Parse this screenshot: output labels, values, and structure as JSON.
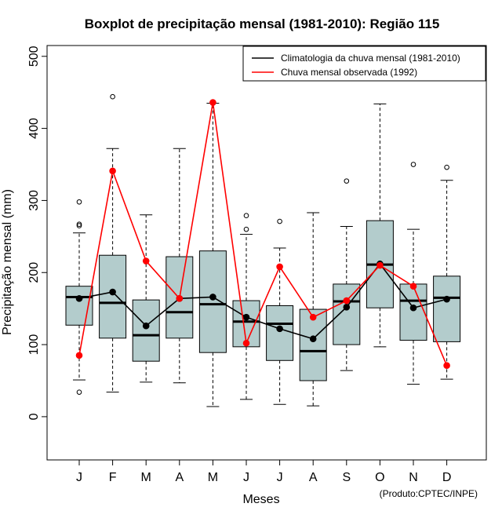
{
  "chart_data": {
    "type": "boxplot",
    "title": "Boxplot de precipitação mensal (1981-2010): Região 115",
    "xlabel": "Meses",
    "ylabel": "Precipitação mensal (mm)",
    "ylim": [
      -60,
      515
    ],
    "yticks": [
      0,
      100,
      200,
      300,
      400,
      500
    ],
    "categories": [
      "J",
      "F",
      "M",
      "A",
      "M",
      "J",
      "J",
      "A",
      "S",
      "O",
      "N",
      "D"
    ],
    "boxes": [
      {
        "whisker_low": 51,
        "q1": 127,
        "median": 166,
        "q3": 181,
        "whisker_high": 255,
        "outliers": [
          34,
          265,
          267,
          298
        ]
      },
      {
        "whisker_low": 34,
        "q1": 109,
        "median": 158,
        "q3": 224,
        "whisker_high": 372,
        "outliers": [
          444
        ]
      },
      {
        "whisker_low": 48,
        "q1": 77,
        "median": 113,
        "q3": 162,
        "whisker_high": 280,
        "outliers": []
      },
      {
        "whisker_low": 47,
        "q1": 109,
        "median": 145,
        "q3": 222,
        "whisker_high": 372,
        "outliers": []
      },
      {
        "whisker_low": 14,
        "q1": 89,
        "median": 156,
        "q3": 230,
        "whisker_high": 435,
        "outliers": []
      },
      {
        "whisker_low": 24,
        "q1": 97,
        "median": 132,
        "q3": 161,
        "whisker_high": 253,
        "outliers": [
          260,
          279
        ]
      },
      {
        "whisker_low": 17,
        "q1": 78,
        "median": 129,
        "q3": 154,
        "whisker_high": 234,
        "outliers": [
          271
        ]
      },
      {
        "whisker_low": 15,
        "q1": 50,
        "median": 91,
        "q3": 149,
        "whisker_high": 283,
        "outliers": []
      },
      {
        "whisker_low": 64,
        "q1": 100,
        "median": 160,
        "q3": 184,
        "whisker_high": 264,
        "outliers": [
          327
        ]
      },
      {
        "whisker_low": 97,
        "q1": 151,
        "median": 211,
        "q3": 272,
        "whisker_high": 434,
        "outliers": []
      },
      {
        "whisker_low": 45,
        "q1": 106,
        "median": 161,
        "q3": 184,
        "whisker_high": 260,
        "outliers": [
          350
        ]
      },
      {
        "whisker_low": 52,
        "q1": 104,
        "median": 165,
        "q3": 195,
        "whisker_high": 328,
        "outliers": [
          346
        ]
      }
    ],
    "series": [
      {
        "name": "Climatologia da chuva mensal (1981-2010)",
        "color": "#000000",
        "values": [
          164,
          173,
          126,
          164,
          166,
          138,
          122,
          108,
          152,
          212,
          151,
          163
        ]
      },
      {
        "name": "Chuva mensal observada (1992)",
        "color": "#ff0000",
        "values": [
          85,
          341,
          216,
          164,
          436,
          102,
          208,
          138,
          161,
          210,
          181,
          71
        ]
      }
    ],
    "box_fill": "#b3cccc",
    "legend_position": "top-right",
    "credit": "(Produto:CPTEC/INPE)"
  }
}
